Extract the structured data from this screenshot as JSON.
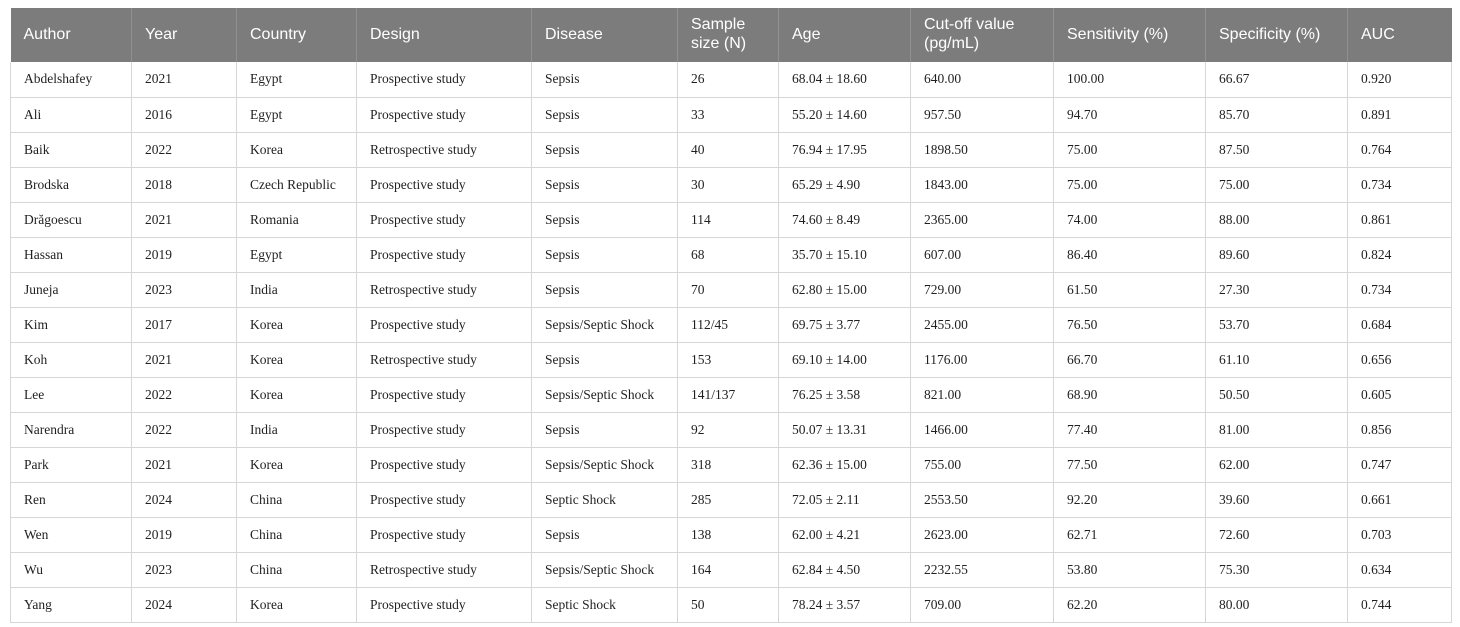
{
  "colors": {
    "header_bg": "#7c7c7c",
    "header_separator": "#909090",
    "header_text": "#ffffff",
    "body_text": "#1f1f1f",
    "grid_line": "#d6d6d6"
  },
  "table": {
    "columns": [
      {
        "label": "Author"
      },
      {
        "label": "Year"
      },
      {
        "label": "Country"
      },
      {
        "label": "Design"
      },
      {
        "label": "Disease"
      },
      {
        "label": "Sample size (N)"
      },
      {
        "label": "Age"
      },
      {
        "label": "Cut-off value (pg/mL)"
      },
      {
        "label": "Sensitivity (%)"
      },
      {
        "label": "Specificity (%)"
      },
      {
        "label": "AUC"
      }
    ],
    "rows": [
      [
        "Abdelshafey",
        "2021",
        "Egypt",
        "Prospective study",
        "Sepsis",
        "26",
        "68.04 ± 18.60",
        "640.00",
        "100.00",
        "66.67",
        "0.920"
      ],
      [
        "Ali",
        "2016",
        "Egypt",
        "Prospective study",
        "Sepsis",
        "33",
        "55.20 ± 14.60",
        "957.50",
        "94.70",
        "85.70",
        "0.891"
      ],
      [
        "Baik",
        "2022",
        "Korea",
        "Retrospective study",
        "Sepsis",
        "40",
        "76.94 ± 17.95",
        "1898.50",
        "75.00",
        "87.50",
        "0.764"
      ],
      [
        "Brodska",
        "2018",
        "Czech Republic",
        "Prospective study",
        "Sepsis",
        "30",
        "65.29 ± 4.90",
        "1843.00",
        "75.00",
        "75.00",
        "0.734"
      ],
      [
        "Drăgoescu",
        "2021",
        "Romania",
        "Prospective study",
        "Sepsis",
        "114",
        "74.60 ± 8.49",
        "2365.00",
        "74.00",
        "88.00",
        "0.861"
      ],
      [
        "Hassan",
        "2019",
        "Egypt",
        "Prospective study",
        "Sepsis",
        "68",
        "35.70 ± 15.10",
        "607.00",
        "86.40",
        "89.60",
        "0.824"
      ],
      [
        "Juneja",
        "2023",
        "India",
        "Retrospective study",
        "Sepsis",
        "70",
        "62.80 ± 15.00",
        "729.00",
        "61.50",
        "27.30",
        "0.734"
      ],
      [
        "Kim",
        "2017",
        "Korea",
        "Prospective study",
        "Sepsis/Septic Shock",
        "112/45",
        "69.75 ± 3.77",
        "2455.00",
        "76.50",
        "53.70",
        "0.684"
      ],
      [
        "Koh",
        "2021",
        "Korea",
        "Retrospective study",
        "Sepsis",
        "153",
        "69.10 ± 14.00",
        "1176.00",
        "66.70",
        "61.10",
        "0.656"
      ],
      [
        "Lee",
        "2022",
        "Korea",
        "Prospective study",
        "Sepsis/Septic Shock",
        "141/137",
        "76.25 ± 3.58",
        "821.00",
        "68.90",
        "50.50",
        "0.605"
      ],
      [
        "Narendra",
        "2022",
        "India",
        "Prospective study",
        "Sepsis",
        "92",
        "50.07 ± 13.31",
        "1466.00",
        "77.40",
        "81.00",
        "0.856"
      ],
      [
        "Park",
        "2021",
        "Korea",
        "Prospective study",
        "Sepsis/Septic Shock",
        "318",
        "62.36 ± 15.00",
        "755.00",
        "77.50",
        "62.00",
        "0.747"
      ],
      [
        "Ren",
        "2024",
        "China",
        "Prospective study",
        "Septic Shock",
        "285",
        "72.05 ± 2.11",
        "2553.50",
        "92.20",
        "39.60",
        "0.661"
      ],
      [
        "Wen",
        "2019",
        "China",
        "Prospective study",
        "Sepsis",
        "138",
        "62.00 ± 4.21",
        "2623.00",
        "62.71",
        "72.60",
        "0.703"
      ],
      [
        "Wu",
        "2023",
        "China",
        "Retrospective study",
        "Sepsis/Septic Shock",
        "164",
        "62.84 ± 4.50",
        "2232.55",
        "53.80",
        "75.30",
        "0.634"
      ],
      [
        "Yang",
        "2024",
        "Korea",
        "Prospective study",
        "Septic Shock",
        "50",
        "78.24 ± 3.57",
        "709.00",
        "62.20",
        "80.00",
        "0.744"
      ]
    ]
  },
  "chart_data": {
    "type": "table",
    "columns": [
      "Author",
      "Year",
      "Country",
      "Design",
      "Disease",
      "Sample size (N)",
      "Age",
      "Cut-off value (pg/mL)",
      "Sensitivity (%)",
      "Specificity (%)",
      "AUC"
    ],
    "rows": [
      [
        "Abdelshafey",
        "2021",
        "Egypt",
        "Prospective study",
        "Sepsis",
        "26",
        "68.04 ± 18.60",
        "640.00",
        "100.00",
        "66.67",
        "0.920"
      ],
      [
        "Ali",
        "2016",
        "Egypt",
        "Prospective study",
        "Sepsis",
        "33",
        "55.20 ± 14.60",
        "957.50",
        "94.70",
        "85.70",
        "0.891"
      ],
      [
        "Baik",
        "2022",
        "Korea",
        "Retrospective study",
        "Sepsis",
        "40",
        "76.94 ± 17.95",
        "1898.50",
        "75.00",
        "87.50",
        "0.764"
      ],
      [
        "Brodska",
        "2018",
        "Czech Republic",
        "Prospective study",
        "Sepsis",
        "30",
        "65.29 ± 4.90",
        "1843.00",
        "75.00",
        "75.00",
        "0.734"
      ],
      [
        "Drăgoescu",
        "2021",
        "Romania",
        "Prospective study",
        "Sepsis",
        "114",
        "74.60 ± 8.49",
        "2365.00",
        "74.00",
        "88.00",
        "0.861"
      ],
      [
        "Hassan",
        "2019",
        "Egypt",
        "Prospective study",
        "Sepsis",
        "68",
        "35.70 ± 15.10",
        "607.00",
        "86.40",
        "89.60",
        "0.824"
      ],
      [
        "Juneja",
        "2023",
        "India",
        "Retrospective study",
        "Sepsis",
        "70",
        "62.80 ± 15.00",
        "729.00",
        "61.50",
        "27.30",
        "0.734"
      ],
      [
        "Kim",
        "2017",
        "Korea",
        "Prospective study",
        "Sepsis/Septic Shock",
        "112/45",
        "69.75 ± 3.77",
        "2455.00",
        "76.50",
        "53.70",
        "0.684"
      ],
      [
        "Koh",
        "2021",
        "Korea",
        "Retrospective study",
        "Sepsis",
        "153",
        "69.10 ± 14.00",
        "1176.00",
        "66.70",
        "61.10",
        "0.656"
      ],
      [
        "Lee",
        "2022",
        "Korea",
        "Prospective study",
        "Sepsis/Septic Shock",
        "141/137",
        "76.25 ± 3.58",
        "821.00",
        "68.90",
        "50.50",
        "0.605"
      ],
      [
        "Narendra",
        "2022",
        "India",
        "Prospective study",
        "Sepsis",
        "92",
        "50.07 ± 13.31",
        "1466.00",
        "77.40",
        "81.00",
        "0.856"
      ],
      [
        "Park",
        "2021",
        "Korea",
        "Prospective study",
        "Sepsis/Septic Shock",
        "318",
        "62.36 ± 15.00",
        "755.00",
        "77.50",
        "62.00",
        "0.747"
      ],
      [
        "Ren",
        "2024",
        "China",
        "Prospective study",
        "Septic Shock",
        "285",
        "72.05 ± 2.11",
        "2553.50",
        "92.20",
        "39.60",
        "0.661"
      ],
      [
        "Wen",
        "2019",
        "China",
        "Prospective study",
        "Sepsis",
        "138",
        "62.00 ± 4.21",
        "2623.00",
        "62.71",
        "72.60",
        "0.703"
      ],
      [
        "Wu",
        "2023",
        "China",
        "Retrospective study",
        "Sepsis/Septic Shock",
        "164",
        "62.84 ± 4.50",
        "2232.55",
        "53.80",
        "75.30",
        "0.634"
      ],
      [
        "Yang",
        "2024",
        "Korea",
        "Prospective study",
        "Septic Shock",
        "50",
        "78.24 ± 3.57",
        "709.00",
        "62.20",
        "80.00",
        "0.744"
      ]
    ]
  }
}
